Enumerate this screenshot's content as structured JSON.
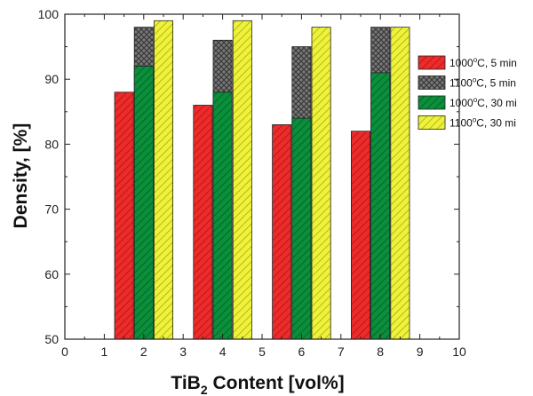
{
  "chart_data": {
    "type": "bar",
    "xlabel": {
      "main": "TiB",
      "sub": "2",
      "rest": " Content [vol%]"
    },
    "ylabel": "Density, [%]",
    "xlim": [
      0,
      10
    ],
    "ylim": [
      50,
      100
    ],
    "x_ticks": [
      "0",
      "1",
      "2",
      "3",
      "4",
      "5",
      "6",
      "7",
      "8",
      "9",
      "10"
    ],
    "y_ticks": [
      "50",
      "60",
      "70",
      "80",
      "90",
      "100"
    ],
    "legend_position": "right",
    "grid": false,
    "series": [
      {
        "name": "1000°C, 5 min",
        "legend": {
          "temp": "1000",
          "deg": "o",
          "rest": "C, 5 min"
        },
        "color": "#ee2b2b",
        "pattern": "hatch-light",
        "x": [
          1.5,
          3.5,
          5.5,
          7.5
        ],
        "values": [
          88,
          86,
          83,
          82
        ]
      },
      {
        "name": "1100°C, 5 min",
        "legend": {
          "temp": "1100",
          "deg": "o",
          "rest": "C, 5 min"
        },
        "color": "#6a6a6a",
        "pattern": "crosshatch",
        "x": [
          2,
          4,
          6,
          8
        ],
        "values": [
          98,
          96,
          95,
          98
        ]
      },
      {
        "name": "1000°C, 30 mi",
        "legend": {
          "temp": "1000",
          "deg": "o",
          "rest": "C, 30 mi"
        },
        "color": "#0a8f3a",
        "pattern": "hatch-dark",
        "x": [
          2,
          4,
          6,
          8
        ],
        "values": [
          92,
          88,
          84,
          91
        ]
      },
      {
        "name": "1100°C, 30 mi",
        "legend": {
          "temp": "1100",
          "deg": "o",
          "rest": "C, 30 mi"
        },
        "color": "#e8ee2a",
        "pattern": "hatch-yellow",
        "x": [
          2.5,
          4.5,
          6.5,
          8.5
        ],
        "values": [
          99,
          99,
          98,
          98
        ]
      }
    ]
  }
}
